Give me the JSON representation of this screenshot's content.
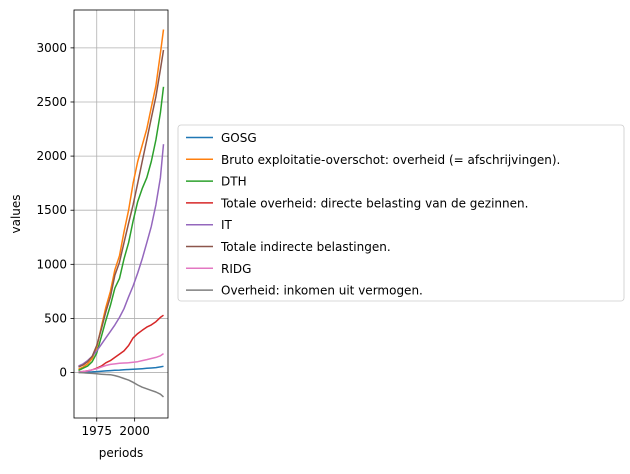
{
  "chart_data": {
    "type": "line",
    "xlabel": "periods",
    "ylabel": "values",
    "xlim": [
      1960,
      2022
    ],
    "ylim": [
      -420,
      3350
    ],
    "xticks": [
      1975,
      2000
    ],
    "xtick_labels": [
      "1975",
      "2000"
    ],
    "yticks": [
      0,
      500,
      1000,
      1500,
      2000,
      2500,
      3000
    ],
    "ytick_labels": [
      "0",
      "500",
      "1000",
      "1500",
      "2000",
      "2500",
      "3000"
    ],
    "grid": true,
    "legend_position": "center-right (outside plot)",
    "x": [
      1963,
      1966,
      1969,
      1972,
      1975,
      1978,
      1981,
      1984,
      1987,
      1990,
      1993,
      1996,
      1999,
      2002,
      2005,
      2008,
      2011,
      2014,
      2017,
      2019
    ],
    "series": [
      {
        "name": "GOSG",
        "color": "#1f77b4",
        "values": [
          0,
          2,
          4,
          6,
          9,
          12,
          15,
          18,
          21,
          23,
          26,
          28,
          30,
          33,
          36,
          39,
          42,
          46,
          52,
          58
        ]
      },
      {
        "name": "Bruto exploitatie-overschot: overheid (= afschrijvingen).",
        "color": "#ff7f0e",
        "values": [
          30,
          50,
          80,
          130,
          230,
          420,
          600,
          750,
          950,
          1080,
          1300,
          1500,
          1750,
          1950,
          2100,
          2250,
          2450,
          2650,
          2950,
          3170
        ]
      },
      {
        "name": "DTH",
        "color": "#2ca02c",
        "values": [
          20,
          40,
          60,
          100,
          180,
          330,
          480,
          620,
          780,
          870,
          1050,
          1200,
          1400,
          1580,
          1700,
          1800,
          1950,
          2150,
          2400,
          2640
        ]
      },
      {
        "name": "Totale overheid: directe belasting van de gezinnen.",
        "color": "#d62728",
        "values": [
          5,
          10,
          15,
          25,
          40,
          60,
          90,
          110,
          140,
          170,
          200,
          250,
          320,
          360,
          390,
          420,
          440,
          470,
          510,
          530
        ]
      },
      {
        "name": "IT",
        "color": "#9467bd",
        "values": [
          60,
          80,
          110,
          150,
          200,
          260,
          320,
          380,
          440,
          510,
          590,
          700,
          800,
          920,
          1050,
          1200,
          1350,
          1550,
          1800,
          2110
        ]
      },
      {
        "name": "Totale indirecte belastingen.",
        "color": "#8c564b",
        "values": [
          50,
          70,
          100,
          150,
          250,
          400,
          560,
          700,
          900,
          1020,
          1200,
          1380,
          1550,
          1750,
          1950,
          2150,
          2350,
          2550,
          2800,
          2980
        ]
      },
      {
        "name": "RIDG",
        "color": "#e377c2",
        "values": [
          5,
          10,
          15,
          25,
          35,
          50,
          65,
          75,
          80,
          85,
          88,
          90,
          95,
          100,
          110,
          120,
          130,
          140,
          155,
          175
        ]
      },
      {
        "name": "Overheid: inkomen uit vermogen.",
        "color": "#7f7f7f",
        "values": [
          0,
          -2,
          -5,
          -8,
          -12,
          -15,
          -18,
          -20,
          -28,
          -40,
          -55,
          -70,
          -90,
          -115,
          -135,
          -150,
          -165,
          -180,
          -200,
          -225
        ]
      }
    ]
  }
}
